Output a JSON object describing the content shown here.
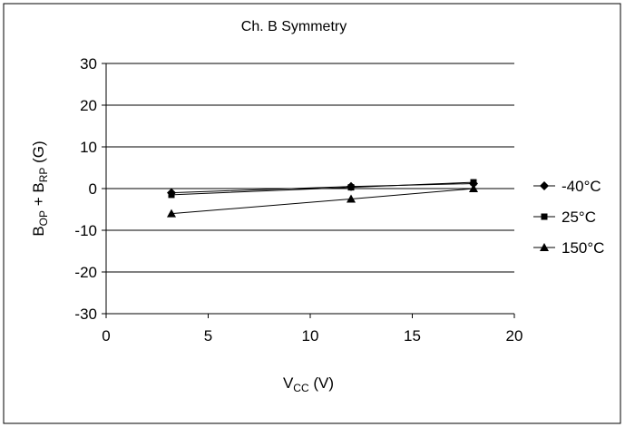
{
  "chart_data": {
    "type": "line",
    "title": "Ch. B Symmetry",
    "xlabel": {
      "main": "V",
      "sub": "CC",
      "tail": " (V)"
    },
    "ylabel": {
      "b1": "B",
      "s1": "OP",
      "mid": " + B",
      "s2": "RP",
      "tail": " (G)"
    },
    "xlim": [
      0,
      20
    ],
    "ylim": [
      -30,
      30
    ],
    "xticks": [
      0,
      5,
      10,
      15,
      20
    ],
    "yticks": [
      30,
      20,
      10,
      0,
      -10,
      -20,
      -30
    ],
    "grid": {
      "horizontal": true,
      "vertical": false
    },
    "legend_position": "right",
    "x": [
      3.2,
      12,
      18
    ],
    "series": [
      {
        "name": "-40°C",
        "marker": "diamond",
        "values": [
          -1.0,
          0.5,
          1.2
        ]
      },
      {
        "name": "25°C",
        "marker": "square",
        "values": [
          -1.5,
          0.3,
          1.5
        ]
      },
      {
        "name": "150°C",
        "marker": "triangle",
        "values": [
          -6.0,
          -2.5,
          0.0
        ]
      }
    ]
  }
}
